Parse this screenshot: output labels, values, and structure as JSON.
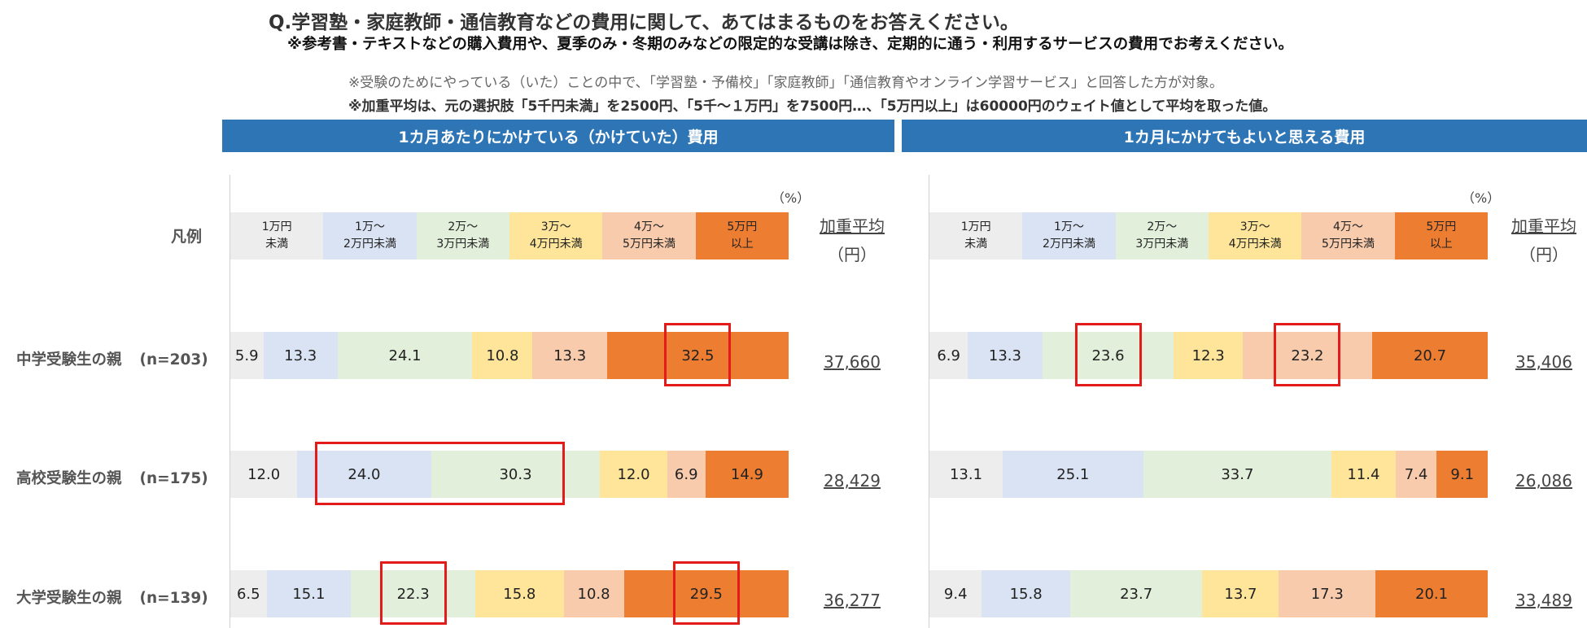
{
  "question": {
    "title": "Q.学習塾・家庭教師・通信教育などの費用に関して、あてはまるものをお答えください。",
    "subtitle": "※参考書・テキストなどの購入費用や、夏季のみ・冬期のみなどの限定的な受講は除き、定期的に通う・利用するサービスの費用でお考えください。"
  },
  "notes": {
    "target": "※受験のためにやっている（いた）ことの中で、「学習塾・予備校」「家庭教師」「通信教育やオンライン学習サービス」と回答した方が対象。",
    "weighting": "※加重平均は、元の選択肢「5千円未満」を2500円、「5千～１万円」を7500円…、「5万円以上」は60000円のウェイト値として平均を取った値。"
  },
  "legend": {
    "label": "凡例",
    "percent_unit": "（%）",
    "weighted_avg_title": "加重平均",
    "weighted_avg_unit": "（円）"
  },
  "colors": {
    "header": "#2e75b6",
    "highlight": "#e31b1b",
    "segments": [
      "#ededed",
      "#dae3f3",
      "#e2efda",
      "#fee599",
      "#f8cbad",
      "#ed7d31"
    ]
  },
  "chart_data": [
    {
      "type": "bar",
      "orientation": "horizontal",
      "stacked": true,
      "title": "1カ月あたりにかけている（かけていた）費用",
      "unit": "（%）",
      "categories": [
        "中学受験生の親",
        "高校受験生の親",
        "大学受験生の親"
      ],
      "sample_sizes": [
        "(n=203)",
        "(n=175)",
        "(n=139)"
      ],
      "series": [
        {
          "name": "1万円未満",
          "values": [
            5.9,
            12.0,
            6.5
          ]
        },
        {
          "name": "1万～2万円未満",
          "values": [
            13.3,
            24.0,
            15.1
          ]
        },
        {
          "name": "2万～3万円未満",
          "values": [
            24.1,
            30.3,
            22.3
          ]
        },
        {
          "name": "3万～4万円未満",
          "values": [
            10.8,
            12.0,
            15.8
          ]
        },
        {
          "name": "4万～5万円未満",
          "values": [
            13.3,
            6.9,
            10.8
          ]
        },
        {
          "name": "5万円以上",
          "values": [
            32.5,
            14.9,
            29.5
          ]
        }
      ],
      "value_labels": [
        [
          "5.9",
          "13.3",
          "24.1",
          "10.8",
          "13.3",
          "32.5"
        ],
        [
          "12.0",
          "24.0",
          "30.3",
          "12.0",
          "6.9",
          "14.9"
        ],
        [
          "6.5",
          "15.1",
          "22.3",
          "15.8",
          "10.8",
          "29.5"
        ]
      ],
      "weighted_average_yen": [
        "37,660",
        "28,429",
        "36,277"
      ],
      "highlighted": [
        [
          0,
          5
        ],
        [
          1,
          1
        ],
        [
          1,
          2
        ],
        [
          2,
          2
        ],
        [
          2,
          5
        ]
      ],
      "xlim": [
        0,
        100
      ],
      "legend_position": "top"
    },
    {
      "type": "bar",
      "orientation": "horizontal",
      "stacked": true,
      "title": "1カ月にかけてもよいと思える費用",
      "unit": "（%）",
      "categories": [
        "中学受験生の親",
        "高校受験生の親",
        "大学受験生の親"
      ],
      "series": [
        {
          "name": "1万円未満",
          "values": [
            6.9,
            13.1,
            9.4
          ]
        },
        {
          "name": "1万～2万円未満",
          "values": [
            13.3,
            25.1,
            15.8
          ]
        },
        {
          "name": "2万～3万円未満",
          "values": [
            23.6,
            33.7,
            23.7
          ]
        },
        {
          "name": "3万～4万円未満",
          "values": [
            12.3,
            11.4,
            13.7
          ]
        },
        {
          "name": "4万～5万円未満",
          "values": [
            23.2,
            7.4,
            17.3
          ]
        },
        {
          "name": "5万円以上",
          "values": [
            20.7,
            9.1,
            20.1
          ]
        }
      ],
      "value_labels": [
        [
          "6.9",
          "13.3",
          "23.6",
          "12.3",
          "23.2",
          "20.7"
        ],
        [
          "13.1",
          "25.1",
          "33.7",
          "11.4",
          "7.4",
          "9.1"
        ],
        [
          "9.4",
          "15.8",
          "23.7",
          "13.7",
          "17.3",
          "20.1"
        ]
      ],
      "weighted_average_yen": [
        "35,406",
        "26,086",
        "33,489"
      ],
      "highlighted": [
        [
          0,
          2
        ],
        [
          0,
          4
        ]
      ],
      "xlim": [
        0,
        100
      ],
      "legend_position": "top"
    }
  ],
  "legend_items": [
    {
      "line1": "1万円",
      "line2": "未満"
    },
    {
      "line1": "1万～",
      "line2": "2万円未満"
    },
    {
      "line1": "2万～",
      "line2": "3万円未満"
    },
    {
      "line1": "3万～",
      "line2": "4万円未満"
    },
    {
      "line1": "4万～",
      "line2": "5万円未満"
    },
    {
      "line1": "5万円",
      "line2": "以上"
    }
  ]
}
